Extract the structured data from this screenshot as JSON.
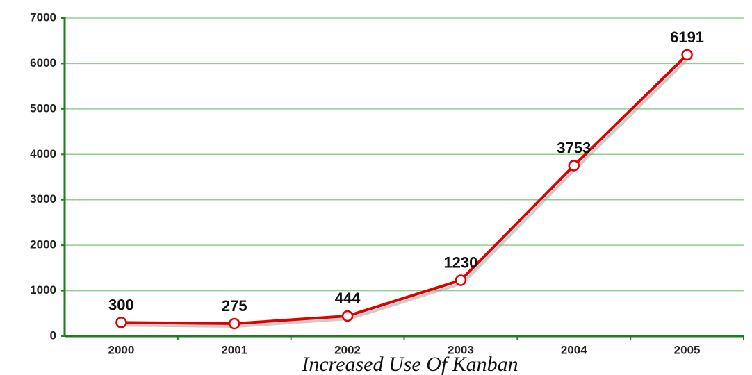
{
  "chart_data": {
    "type": "line",
    "x_label": "Increased Use Of Kanban",
    "categories": [
      "2000",
      "2001",
      "2002",
      "2003",
      "2004",
      "2005"
    ],
    "values": [
      300,
      275,
      444,
      1230,
      3753,
      6191
    ],
    "color": "#e00000",
    "ylim": [
      0,
      7000
    ],
    "yticks": [
      0,
      1000,
      2000,
      3000,
      4000,
      5000,
      6000,
      7000
    ],
    "grid": true
  }
}
